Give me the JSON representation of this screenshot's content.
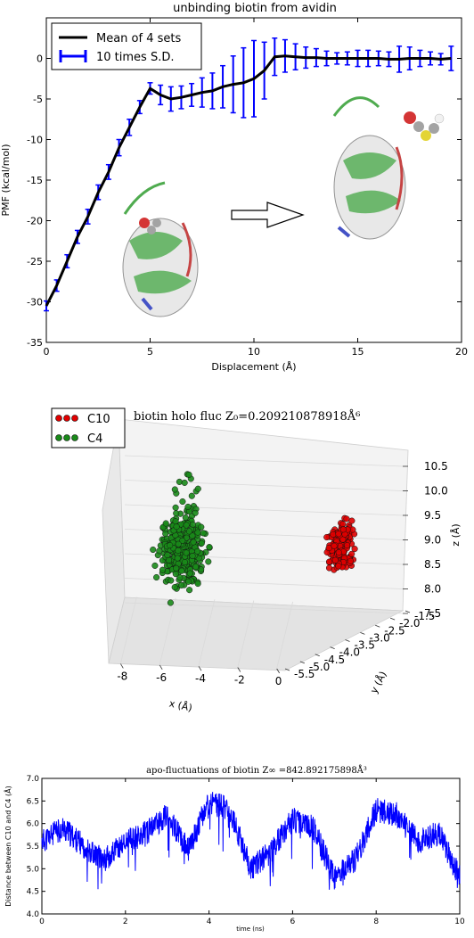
{
  "colors": {
    "mean_line": "#000000",
    "errorbar": "#0000ff",
    "c10": "#e00000",
    "c4": "#1a8a1a",
    "apo_line": "#0000ff",
    "pane": "#f2f2f2"
  },
  "chart_data": [
    {
      "type": "line",
      "title": "unbinding biotin from avidin",
      "xlabel": "Displacement (Å)",
      "ylabel": "PMF (kcal/mol)",
      "xlim": [
        0,
        20
      ],
      "ylim": [
        -35,
        5
      ],
      "xticks": [
        "0",
        "5",
        "10",
        "15",
        "20"
      ],
      "yticks": [
        "-35",
        "-30",
        "-25",
        "-20",
        "-15",
        "-10",
        "-5",
        "0"
      ],
      "legend_position": "top-left",
      "series": [
        {
          "name": "Mean of 4 sets",
          "x": [
            0,
            0.5,
            1,
            1.5,
            2,
            2.5,
            3,
            3.5,
            4,
            4.5,
            5,
            5.5,
            6,
            6.5,
            7,
            7.5,
            8,
            8.5,
            9,
            9.5,
            10,
            10.5,
            11,
            11.5,
            12,
            12.5,
            13,
            13.5,
            14,
            14.5,
            15,
            15.5,
            16,
            16.5,
            17,
            17.5,
            18,
            18.5,
            19,
            19.5
          ],
          "values": [
            -30.5,
            -28,
            -25,
            -22,
            -19.5,
            -16.5,
            -14,
            -11,
            -8.5,
            -6,
            -3.7,
            -4.5,
            -5,
            -4.8,
            -4.5,
            -4.2,
            -4,
            -3.5,
            -3.2,
            -3,
            -2.5,
            -1.5,
            0.2,
            0.3,
            0.2,
            0.1,
            0.1,
            0,
            0,
            0,
            0,
            0,
            0,
            -0.1,
            -0.1,
            0,
            0,
            0,
            -0.1,
            0
          ]
        },
        {
          "name": "10 times S.D.",
          "err": [
            0.6,
            0.7,
            0.8,
            0.8,
            0.9,
            0.9,
            0.9,
            1.0,
            1.0,
            0.8,
            0.7,
            1.2,
            1.5,
            1.4,
            1.4,
            1.8,
            2.2,
            2.6,
            3.5,
            4.3,
            4.7,
            3.5,
            2.3,
            2.0,
            1.6,
            1.3,
            1.1,
            0.9,
            0.7,
            0.8,
            1.0,
            1.0,
            0.9,
            0.9,
            1.6,
            1.4,
            1.0,
            0.8,
            0.7,
            1.5
          ]
        }
      ]
    },
    {
      "type": "scatter",
      "title": "biotin holo fluc Z₀=0.209210878918Å⁶",
      "xlabel": "x (Å)",
      "ylabel": "y (Å)",
      "zlabel": "z (Å)",
      "xticks": [
        "-8",
        "-6",
        "-4",
        "-2",
        "0"
      ],
      "yticks": [
        "-5.5",
        "-5.0",
        "-4.5",
        "-4.0",
        "-3.5",
        "-3.0",
        "-2.5",
        "-2.0",
        "-1.5"
      ],
      "zticks": [
        "7.5",
        "8.0",
        "8.5",
        "9.0",
        "9.5",
        "10.0",
        "10.5"
      ],
      "legend_position": "top-left",
      "series": [
        {
          "name": "C10",
          "x_center": -0.4,
          "y_center": -3.6,
          "z_center": 8.85
        },
        {
          "name": "C4",
          "x_center": -6.2,
          "y_center": -3.5,
          "z_center": 8.9
        }
      ]
    },
    {
      "type": "line",
      "title": "apo-fluctuations of biotin Z∞ =842.892175898Å³",
      "xlabel": "time (ns)",
      "ylabel": "Distance between C10 and C4 (Å)",
      "xlim": [
        0,
        10
      ],
      "ylim": [
        4.0,
        7.0
      ],
      "xticks": [
        "0",
        "2",
        "4",
        "6",
        "8",
        "10"
      ],
      "yticks": [
        "4.0",
        "4.5",
        "5.0",
        "5.5",
        "6.0",
        "6.5",
        "7.0"
      ],
      "series": [
        {
          "x": [
            0,
            0.5,
            1,
            1.5,
            2,
            2.5,
            3,
            3.5,
            4,
            4.5,
            5,
            5.5,
            6,
            6.5,
            7,
            7.5,
            8,
            8.5,
            9,
            9.5,
            10
          ],
          "values": [
            5.6,
            5.9,
            5.5,
            5.2,
            5.6,
            5.8,
            6.2,
            5.4,
            6.5,
            6.3,
            5.0,
            5.4,
            6.1,
            5.9,
            4.8,
            5.2,
            6.3,
            6.2,
            5.6,
            5.8,
            4.8
          ]
        }
      ]
    }
  ]
}
